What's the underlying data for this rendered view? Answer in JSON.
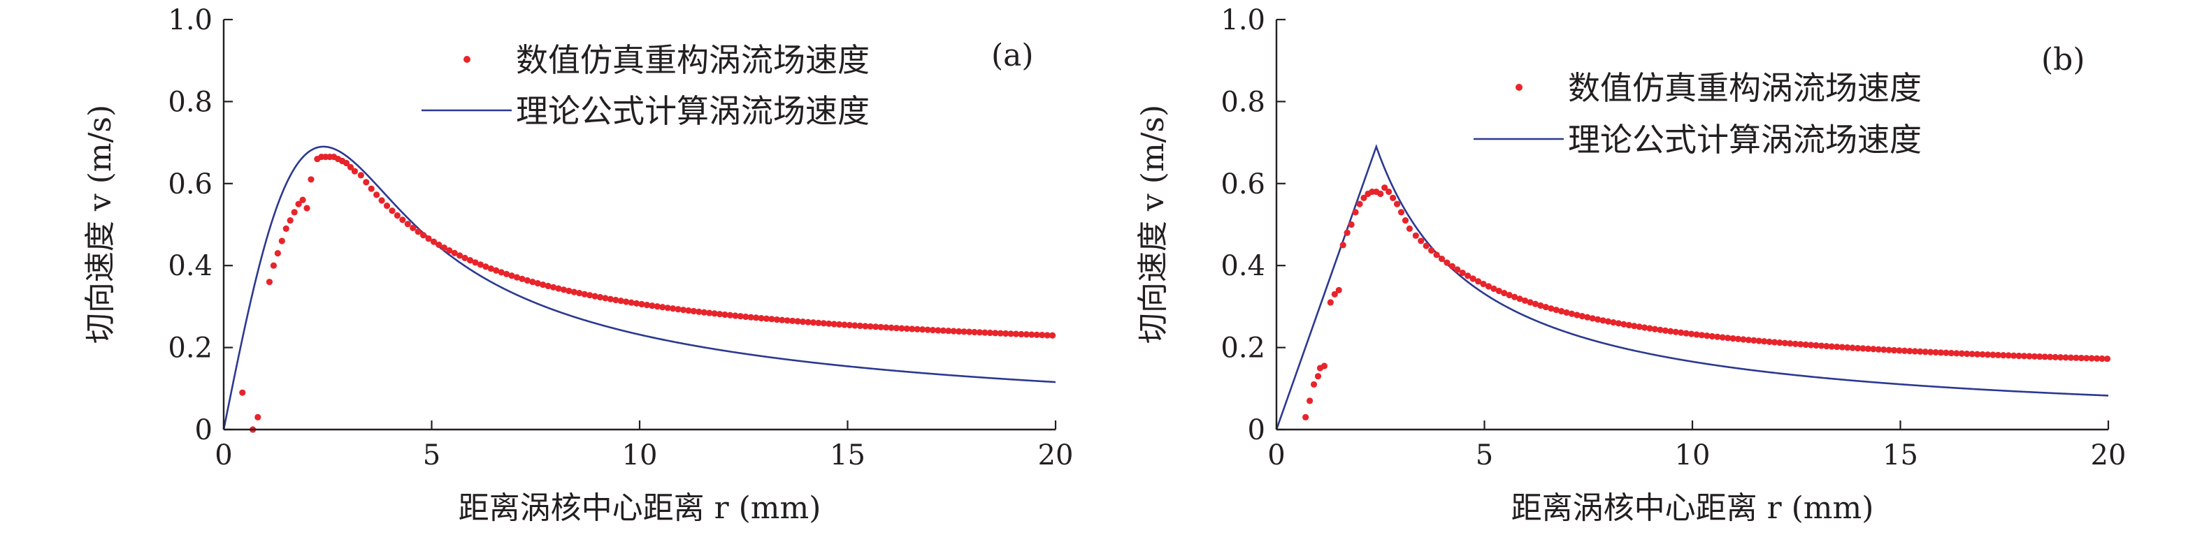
{
  "colors": {
    "simulation": "#e8242b",
    "theory": "#2b3990",
    "axis": "#231f20"
  },
  "chart_data": [
    {
      "type": "scatter+line",
      "panel_label": "(a)",
      "xlabel": "距离涡核中心距离 r (mm)",
      "ylabel": "切向速度 v (m/s)",
      "xlim": [
        0,
        20
      ],
      "ylim": [
        0,
        1.0
      ],
      "x_ticks": [
        "0",
        "5",
        "10",
        "15",
        "20"
      ],
      "y_ticks": [
        "0",
        "0.2",
        "0.4",
        "0.6",
        "0.8",
        "1.0"
      ],
      "legend_position": "top-right",
      "series": [
        {
          "name": "数值仿真重构涡流场速度",
          "kind": "scatter",
          "color": "#e8242b",
          "points": [
            [
              0.45,
              0.09
            ],
            [
              0.7,
              0.0
            ],
            [
              0.82,
              0.03
            ],
            [
              1.1,
              0.36
            ],
            [
              1.2,
              0.4
            ],
            [
              1.3,
              0.43
            ],
            [
              1.4,
              0.46
            ],
            [
              1.5,
              0.49
            ],
            [
              1.6,
              0.51
            ],
            [
              1.7,
              0.53
            ],
            [
              1.8,
              0.55
            ],
            [
              1.9,
              0.56
            ],
            [
              2.0,
              0.54
            ],
            [
              2.1,
              0.61
            ],
            [
              2.25,
              0.66
            ],
            [
              2.35,
              0.665
            ],
            [
              2.45,
              0.665
            ],
            [
              2.55,
              0.665
            ],
            [
              2.65,
              0.665
            ],
            [
              2.75,
              0.66
            ],
            [
              2.85,
              0.655
            ],
            [
              2.95,
              0.65
            ],
            [
              3.05,
              0.64
            ],
            [
              3.15,
              0.63
            ]
          ],
          "tail": {
            "from": 3.3,
            "to": 20,
            "step": 0.125,
            "plateau": 0.152,
            "value_at_3_2": 0.635
          }
        },
        {
          "name": "理论公式计算涡流场速度",
          "kind": "line",
          "color": "#2b3990",
          "formula": "lamb-oseen",
          "peak_radius": 2.4,
          "peak_value": 0.69
        }
      ]
    },
    {
      "type": "scatter+line",
      "panel_label": "(b)",
      "xlabel": "距离涡核中心距离 r (mm)",
      "ylabel": "切向速度 v (m/s)",
      "xlim": [
        0,
        20
      ],
      "ylim": [
        0,
        1.0
      ],
      "x_ticks": [
        "0",
        "5",
        "10",
        "15",
        "20"
      ],
      "y_ticks": [
        "0",
        "0.2",
        "0.4",
        "0.6",
        "0.8",
        "1.0"
      ],
      "legend_position": "top-right",
      "series": [
        {
          "name": "数值仿真重构涡流场速度",
          "kind": "scatter",
          "color": "#e8242b",
          "points": [
            [
              0.7,
              0.03
            ],
            [
              0.8,
              0.07
            ],
            [
              0.9,
              0.11
            ],
            [
              1.0,
              0.13
            ],
            [
              1.05,
              0.15
            ],
            [
              1.15,
              0.155
            ],
            [
              1.3,
              0.31
            ],
            [
              1.4,
              0.33
            ],
            [
              1.5,
              0.34
            ],
            [
              1.6,
              0.45
            ],
            [
              1.7,
              0.48
            ],
            [
              1.8,
              0.5
            ],
            [
              1.9,
              0.53
            ],
            [
              2.0,
              0.55
            ],
            [
              2.1,
              0.565
            ],
            [
              2.2,
              0.575
            ],
            [
              2.3,
              0.58
            ],
            [
              2.4,
              0.58
            ],
            [
              2.5,
              0.575
            ],
            [
              2.6,
              0.59
            ],
            [
              2.7,
              0.58
            ],
            [
              2.8,
              0.565
            ],
            [
              2.9,
              0.55
            ],
            [
              3.0,
              0.53
            ],
            [
              3.1,
              0.51
            ],
            [
              3.2,
              0.49
            ]
          ],
          "tail": {
            "from": 3.35,
            "to": 20,
            "step": 0.125,
            "plateau": 0.112,
            "value_at_3_2": 0.49
          }
        },
        {
          "name": "理论公式计算涡流场速度",
          "kind": "line",
          "color": "#2b3990",
          "formula": "rankine",
          "peak_radius": 2.4,
          "peak_value": 0.69
        }
      ]
    }
  ]
}
